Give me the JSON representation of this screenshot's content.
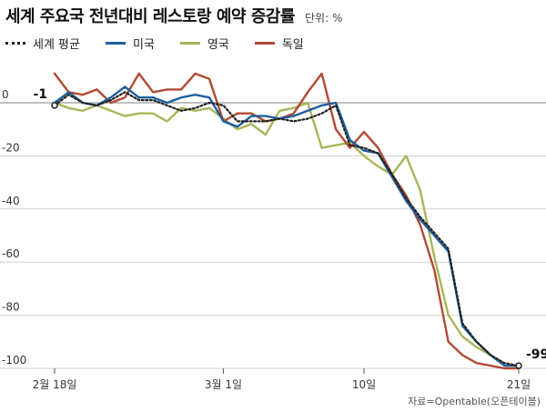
{
  "chart_data": {
    "type": "line",
    "title": "세계 주요국 전년대비 레스토랑 예약 증감률",
    "unit_label": "단위: %",
    "source": "자료=Opentable(오픈테이블)",
    "ylim": [
      -100,
      0
    ],
    "yticks": [
      0,
      -20,
      -40,
      -60,
      -80,
      -100
    ],
    "yticks_labels": [
      "0",
      "-20",
      "-40",
      "-60",
      "-80",
      "-100"
    ],
    "xticks": [
      {
        "index": 0,
        "label": "2월 18일"
      },
      {
        "index": 12,
        "label": "3월 1일"
      },
      {
        "index": 22,
        "label": "10일"
      },
      {
        "index": 33,
        "label": "21일"
      }
    ],
    "grid": true,
    "series": [
      {
        "name": "세계 평균",
        "color": "#222222",
        "style": "dotted",
        "values": [
          -1,
          3,
          0,
          -1,
          1,
          4,
          1,
          1,
          -1,
          -3,
          -2,
          0,
          -1,
          -7,
          -7,
          -7,
          -6,
          -7,
          -6,
          -4,
          -1,
          -16,
          -17,
          -19,
          -27,
          -36,
          -43,
          -49,
          -55,
          -83,
          -90,
          -95,
          -98,
          -99
        ]
      },
      {
        "name": "미국",
        "color": "#1c5f9e",
        "style": "solid",
        "values": [
          0,
          4,
          0,
          -1,
          2,
          6,
          2,
          2,
          0,
          2,
          3,
          2,
          -7,
          -9,
          -5,
          -5,
          -6,
          -5,
          -3,
          -1,
          0,
          -14,
          -18,
          -19,
          -28,
          -37,
          -44,
          -50,
          -56,
          -84,
          -90,
          -95,
          -99,
          -99
        ]
      },
      {
        "name": "영국",
        "color": "#a9b55a",
        "style": "solid",
        "values": [
          0,
          -2,
          -3,
          -1,
          -3,
          -5,
          -4,
          -4,
          -7,
          -2,
          -3,
          -2,
          -6,
          -10,
          -8,
          -12,
          -3,
          -2,
          0,
          -17,
          -16,
          -15,
          -20,
          -24,
          -27,
          -20,
          -33,
          -58,
          -80,
          -88,
          -92,
          -95,
          -99,
          -99
        ]
      },
      {
        "name": "독일",
        "color": "#b24a33",
        "style": "solid",
        "values": [
          11,
          4,
          3,
          5,
          0,
          2,
          11,
          4,
          5,
          5,
          11,
          9,
          -7,
          -4,
          -4,
          -7,
          -6,
          -4,
          4,
          11,
          -10,
          -17,
          -11,
          -17,
          -27,
          -35,
          -46,
          -63,
          -90,
          -95,
          -98,
          -99,
          -100,
          -100
        ]
      }
    ],
    "annotations": [
      {
        "series": 0,
        "index": 0,
        "label": "-1",
        "position": "left"
      },
      {
        "series": 0,
        "index": 33,
        "label": "-99",
        "position": "right"
      }
    ]
  }
}
